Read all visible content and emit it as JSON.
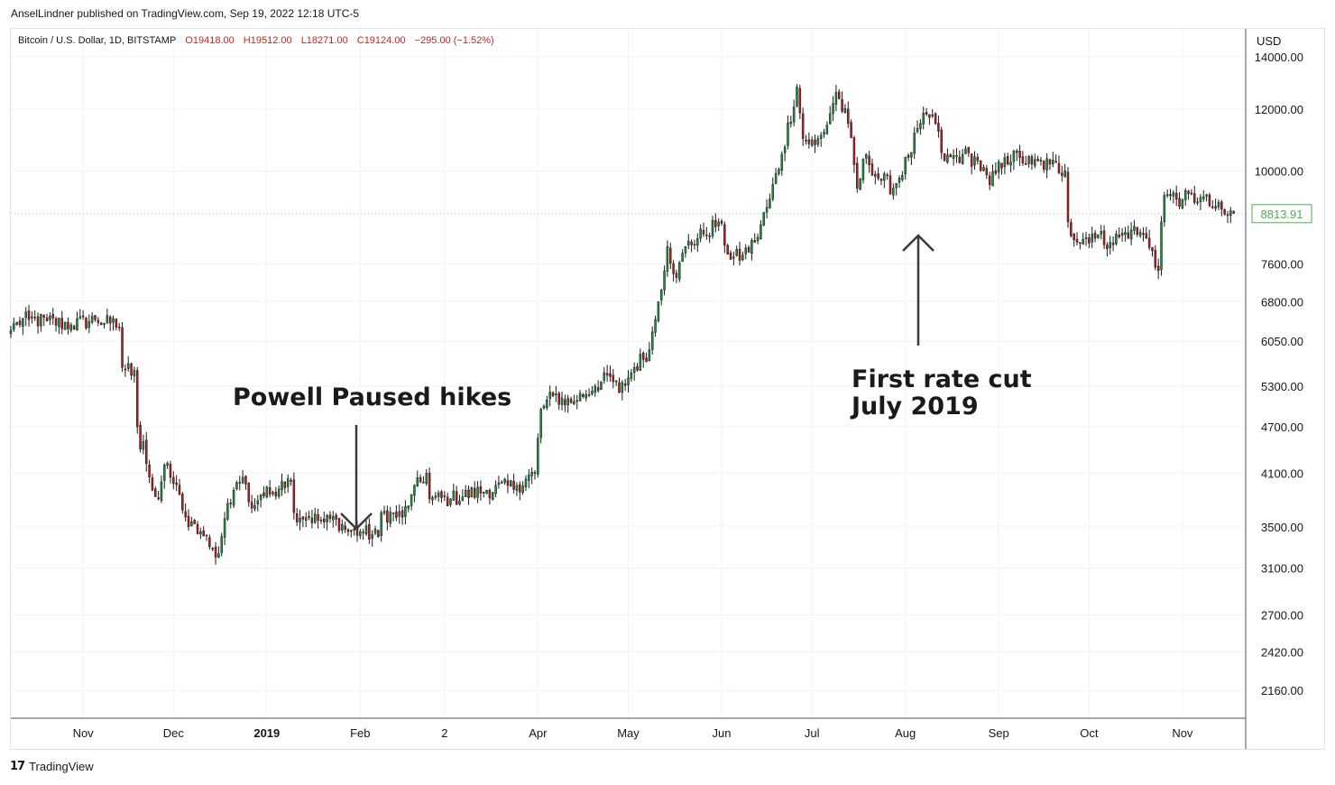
{
  "publisher": "AnselLindner published on TradingView.com, Sep 19, 2022 12:18 UTC-5",
  "legend": {
    "symbol": "Bitcoin / U.S. Dollar, 1D, BITSTAMP",
    "open": "O19418.00",
    "high": "H19512.00",
    "low": "L18271.00",
    "close": "C19124.00",
    "change": "−295.00 (−1.52%)"
  },
  "price_unit": "USD",
  "branding": "TradingView",
  "colors": {
    "up": "#26a69a",
    "down": "#ef5350",
    "up_candle": "#1e8e3e",
    "down_candle": "#b71c1c",
    "last_price": "#4caf50",
    "grid": "#f0f3fa"
  },
  "annotations": [
    {
      "text": [
        "Powell Paused hikes"
      ]
    },
    {
      "text": [
        "First rate cut",
        "July 2019"
      ]
    }
  ],
  "chart_data": {
    "type": "candlestick",
    "title": "",
    "y_scale": "log",
    "ylim": [
      1990,
      15200
    ],
    "y_ticks": [
      "14000.00",
      "12000.00",
      "10000.00",
      "7600.00",
      "6800.00",
      "6050.00",
      "5300.00",
      "4700.00",
      "4100.00",
      "3500.00",
      "3100.00",
      "2700.00",
      "2420.00",
      "2160.00"
    ],
    "x_ticks": [
      {
        "label": "Nov",
        "date": "2018-11-01",
        "bold": false
      },
      {
        "label": "Dec",
        "date": "2018-12-01",
        "bold": false
      },
      {
        "label": "2019",
        "date": "2019-01-01",
        "bold": true
      },
      {
        "label": "Feb",
        "date": "2019-02-01",
        "bold": false
      },
      {
        "label": "2",
        "date": "2019-03-01",
        "bold": false
      },
      {
        "label": "Apr",
        "date": "2019-04-01",
        "bold": false
      },
      {
        "label": "May",
        "date": "2019-05-01",
        "bold": false
      },
      {
        "label": "Jun",
        "date": "2019-06-01",
        "bold": false
      },
      {
        "label": "Jul",
        "date": "2019-07-01",
        "bold": false
      },
      {
        "label": "Aug",
        "date": "2019-08-01",
        "bold": false
      },
      {
        "label": "Sep",
        "date": "2019-09-01",
        "bold": false
      },
      {
        "label": "Oct",
        "date": "2019-10-01",
        "bold": false
      },
      {
        "label": "Nov",
        "date": "2019-11-01",
        "bold": false
      }
    ],
    "last_price": "8813.91",
    "xlim": [
      "2018-10-08",
      "2019-11-22"
    ],
    "close_path": [
      [
        "2018-10-08",
        6250
      ],
      [
        "2018-10-10",
        6400
      ],
      [
        "2018-10-14",
        6450
      ],
      [
        "2018-10-20",
        6420
      ],
      [
        "2018-10-28",
        6350
      ],
      [
        "2018-11-05",
        6450
      ],
      [
        "2018-11-10",
        6380
      ],
      [
        "2018-11-13",
        6300
      ],
      [
        "2018-11-14",
        5600
      ],
      [
        "2018-11-18",
        5550
      ],
      [
        "2018-11-19",
        4700
      ],
      [
        "2018-11-20",
        4400
      ],
      [
        "2018-11-21",
        4500
      ],
      [
        "2018-11-24",
        3900
      ],
      [
        "2018-11-26",
        3800
      ],
      [
        "2018-11-28",
        4200
      ],
      [
        "2018-11-30",
        4050
      ],
      [
        "2018-12-03",
        3850
      ],
      [
        "2018-12-06",
        3500
      ],
      [
        "2018-12-10",
        3450
      ],
      [
        "2018-12-13",
        3300
      ],
      [
        "2018-12-15",
        3200
      ],
      [
        "2018-12-17",
        3400
      ],
      [
        "2018-12-19",
        3750
      ],
      [
        "2018-12-21",
        3900
      ],
      [
        "2018-12-24",
        4050
      ],
      [
        "2018-12-27",
        3700
      ],
      [
        "2018-12-30",
        3850
      ],
      [
        "2019-01-02",
        3850
      ],
      [
        "2019-01-06",
        4000
      ],
      [
        "2019-01-09",
        4000
      ],
      [
        "2019-01-10",
        3650
      ],
      [
        "2019-01-15",
        3600
      ],
      [
        "2019-01-20",
        3550
      ],
      [
        "2019-01-24",
        3580
      ],
      [
        "2019-01-28",
        3450
      ],
      [
        "2019-02-01",
        3450
      ],
      [
        "2019-02-07",
        3400
      ],
      [
        "2019-02-08",
        3650
      ],
      [
        "2019-02-15",
        3600
      ],
      [
        "2019-02-18",
        3850
      ],
      [
        "2019-02-23",
        4100
      ],
      [
        "2019-02-24",
        3800
      ],
      [
        "2019-03-03",
        3800
      ],
      [
        "2019-03-15",
        3900
      ],
      [
        "2019-03-25",
        3950
      ],
      [
        "2019-03-31",
        4100
      ],
      [
        "2019-04-02",
        4950
      ],
      [
        "2019-04-06",
        5150
      ],
      [
        "2019-04-12",
        5050
      ],
      [
        "2019-04-20",
        5300
      ],
      [
        "2019-04-25",
        5450
      ],
      [
        "2019-04-28",
        5200
      ],
      [
        "2019-05-03",
        5600
      ],
      [
        "2019-05-08",
        5900
      ],
      [
        "2019-05-11",
        6800
      ],
      [
        "2019-05-14",
        8000
      ],
      [
        "2019-05-17",
        7300
      ],
      [
        "2019-05-20",
        8000
      ],
      [
        "2019-05-26",
        8300
      ],
      [
        "2019-05-31",
        8600
      ],
      [
        "2019-06-04",
        7700
      ],
      [
        "2019-06-08",
        7800
      ],
      [
        "2019-06-12",
        8100
      ],
      [
        "2019-06-17",
        9200
      ],
      [
        "2019-06-21",
        10500
      ],
      [
        "2019-06-26",
        12800
      ],
      [
        "2019-06-28",
        11000
      ],
      [
        "2019-07-02",
        10800
      ],
      [
        "2019-07-05",
        11200
      ],
      [
        "2019-07-09",
        12600
      ],
      [
        "2019-07-13",
        11500
      ],
      [
        "2019-07-16",
        9500
      ],
      [
        "2019-07-19",
        10500
      ],
      [
        "2019-07-22",
        9900
      ],
      [
        "2019-07-28",
        9500
      ],
      [
        "2019-08-02",
        10400
      ],
      [
        "2019-08-06",
        11500
      ],
      [
        "2019-08-10",
        11800
      ],
      [
        "2019-08-14",
        10300
      ],
      [
        "2019-08-20",
        10500
      ],
      [
        "2019-08-25",
        10300
      ],
      [
        "2019-08-29",
        9600
      ],
      [
        "2019-09-03",
        10400
      ],
      [
        "2019-09-08",
        10400
      ],
      [
        "2019-09-12",
        10200
      ],
      [
        "2019-09-18",
        10200
      ],
      [
        "2019-09-23",
        10000
      ],
      [
        "2019-09-24",
        8600
      ],
      [
        "2019-09-27",
        8100
      ],
      [
        "2019-10-02",
        8300
      ],
      [
        "2019-10-08",
        8100
      ],
      [
        "2019-10-15",
        8400
      ],
      [
        "2019-10-20",
        8200
      ],
      [
        "2019-10-22",
        7900
      ],
      [
        "2019-10-24",
        7450
      ],
      [
        "2019-10-25",
        8600
      ],
      [
        "2019-10-26",
        9300
      ],
      [
        "2019-11-01",
        9200
      ],
      [
        "2019-11-07",
        9250
      ],
      [
        "2019-11-12",
        8950
      ],
      [
        "2019-11-15",
        8800
      ],
      [
        "2019-11-18",
        8813.91
      ]
    ]
  }
}
